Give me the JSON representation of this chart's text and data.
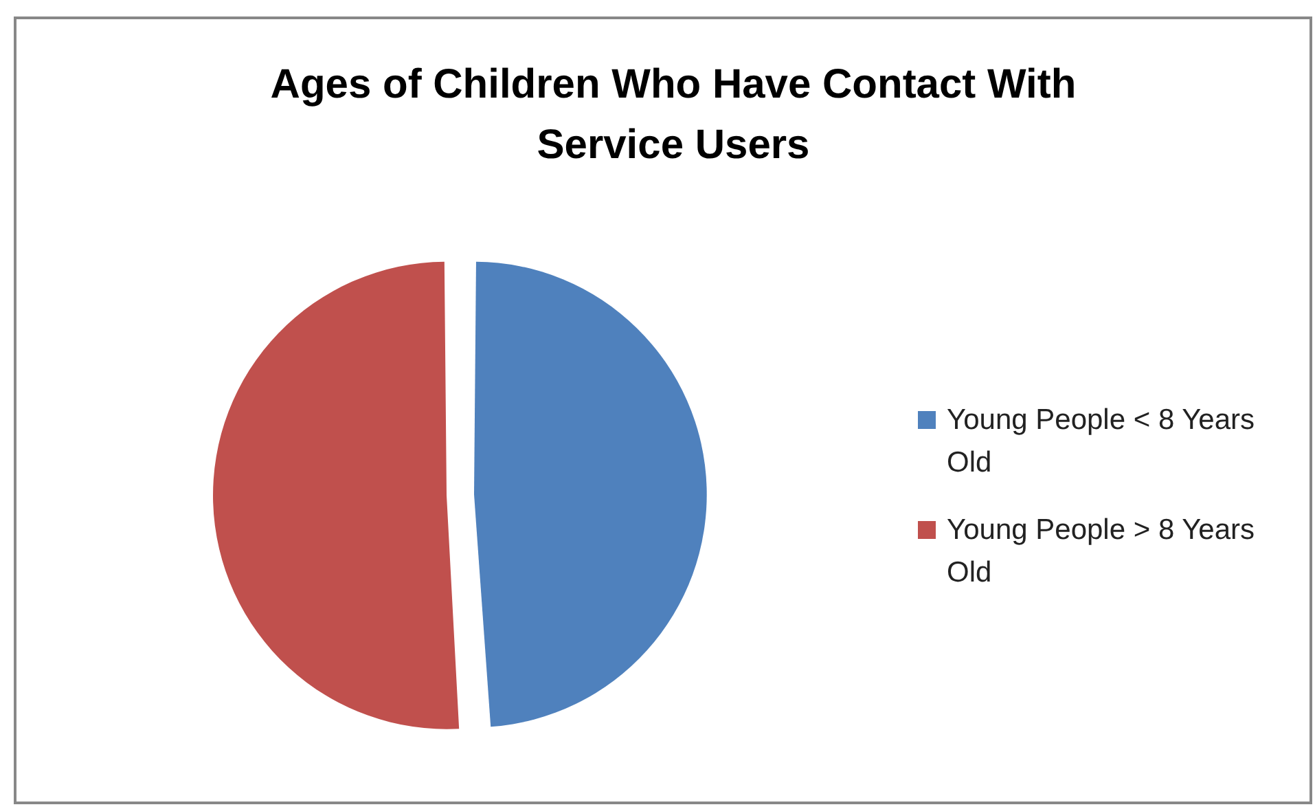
{
  "chart_data": {
    "type": "pie",
    "title": "Ages of Children Who Have Contact With Service Users",
    "categories": [
      "Young People < 8 Years Old",
      "Young People > 8 Years Old"
    ],
    "values": [
      49,
      51
    ],
    "colors": [
      "#4f81bd",
      "#c0504d"
    ],
    "legend": "right"
  }
}
